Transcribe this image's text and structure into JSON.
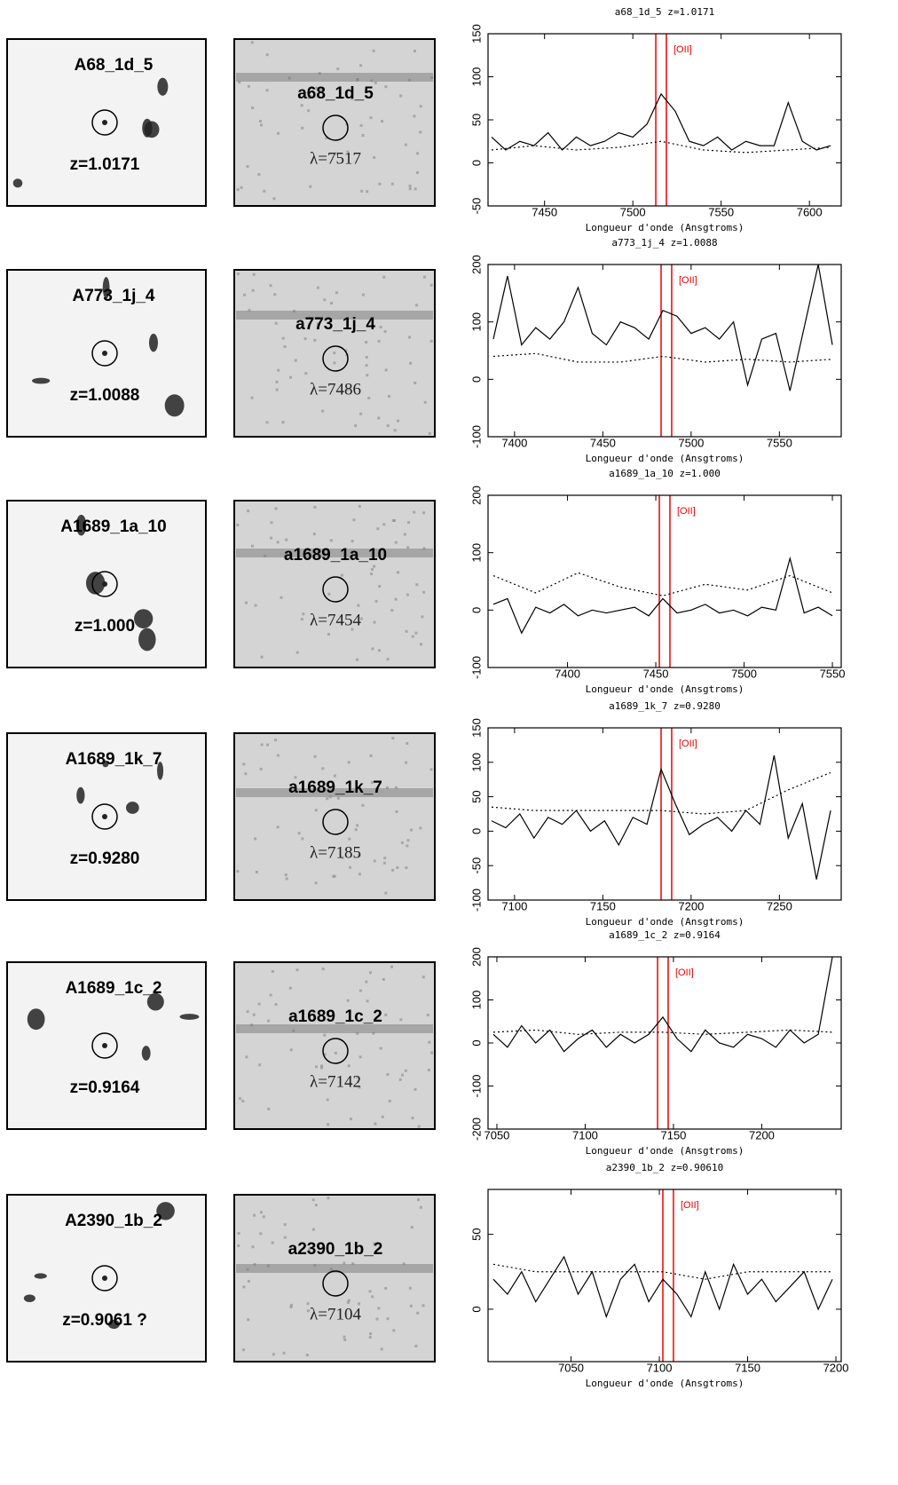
{
  "rows": [
    {
      "image": {
        "name": "A68_1d_5",
        "z": "z=1.0171"
      },
      "slit": {
        "name": "a68_1d_5",
        "lambda": "λ=7517"
      }
    },
    {
      "image": {
        "name": "A773_1j_4",
        "z": "z=1.0088"
      },
      "slit": {
        "name": "a773_1j_4",
        "lambda": "λ=7486"
      }
    },
    {
      "image": {
        "name": "A1689_1a_10",
        "z": "z=1.000"
      },
      "slit": {
        "name": "a1689_1a_10",
        "lambda": "λ=7454"
      }
    },
    {
      "image": {
        "name": "A1689_1k_7",
        "z": "z=0.9280"
      },
      "slit": {
        "name": "a1689_1k_7",
        "lambda": "λ=7185"
      }
    },
    {
      "image": {
        "name": "A1689_1c_2",
        "z": "z=0.9164"
      },
      "slit": {
        "name": "a1689_1c_2",
        "lambda": "λ=7142"
      }
    },
    {
      "image": {
        "name": "A2390_1b_2",
        "z": "z=0.9061 ?"
      },
      "slit": {
        "name": "a2390_1b_2",
        "lambda": "λ=7104"
      }
    }
  ],
  "chart_data": [
    {
      "type": "line",
      "title": "a68_1d_5 z=1.0171",
      "x_label": "Longueur d'onde (Ansgtroms)",
      "annotation": "[OII]",
      "oii_lines": [
        7513,
        7519
      ],
      "xlim": [
        7418,
        7618
      ],
      "xticks": [
        7450,
        7500,
        7550,
        7600
      ],
      "ylim": [
        -50,
        150
      ],
      "yticks": [
        -50,
        0,
        50,
        100,
        150
      ],
      "series": [
        {
          "color": "#000000",
          "style": "solid",
          "x": [
            7420,
            7428,
            7436,
            7444,
            7452,
            7460,
            7468,
            7476,
            7484,
            7492,
            7500,
            7508,
            7516,
            7524,
            7532,
            7540,
            7548,
            7556,
            7564,
            7572,
            7580,
            7588,
            7596,
            7604,
            7612
          ],
          "values": [
            30,
            15,
            25,
            20,
            35,
            15,
            30,
            20,
            25,
            35,
            30,
            45,
            80,
            60,
            25,
            20,
            30,
            15,
            25,
            20,
            20,
            70,
            25,
            15,
            20
          ]
        },
        {
          "color": "#000000",
          "style": "dotted",
          "x": [
            7420,
            7444,
            7468,
            7492,
            7516,
            7540,
            7564,
            7588,
            7612
          ],
          "values": [
            15,
            20,
            15,
            18,
            25,
            15,
            12,
            15,
            18
          ]
        }
      ]
    },
    {
      "type": "line",
      "title": "a773_1j_4 z=1.0088",
      "x_label": "Longueur d'onde (Ansgtroms)",
      "annotation": "[OII]",
      "oii_lines": [
        7483,
        7489
      ],
      "xlim": [
        7385,
        7585
      ],
      "xticks": [
        7400,
        7450,
        7500,
        7550
      ],
      "ylim": [
        -100,
        200
      ],
      "yticks": [
        -100,
        0,
        100,
        200
      ],
      "series": [
        {
          "color": "#000000",
          "style": "solid",
          "x": [
            7388,
            7396,
            7404,
            7412,
            7420,
            7428,
            7436,
            7444,
            7452,
            7460,
            7468,
            7476,
            7484,
            7492,
            7500,
            7508,
            7516,
            7524,
            7532,
            7540,
            7548,
            7556,
            7564,
            7572,
            7580
          ],
          "values": [
            70,
            180,
            60,
            90,
            70,
            100,
            160,
            80,
            60,
            100,
            90,
            70,
            120,
            110,
            80,
            90,
            70,
            100,
            -10,
            70,
            80,
            -20,
            90,
            200,
            60
          ]
        },
        {
          "color": "#000000",
          "style": "dotted",
          "x": [
            7388,
            7412,
            7436,
            7460,
            7484,
            7508,
            7532,
            7556,
            7580
          ],
          "values": [
            40,
            45,
            30,
            30,
            40,
            30,
            35,
            30,
            35
          ]
        }
      ]
    },
    {
      "type": "line",
      "title": "a1689_1a_10 z=1.000",
      "x_label": "Longueur d'onde (Ansgtroms)",
      "annotation": "[OII]",
      "oii_lines": [
        7452,
        7458
      ],
      "xlim": [
        7355,
        7555
      ],
      "xticks": [
        7400,
        7450,
        7500,
        7550
      ],
      "ylim": [
        -100,
        200
      ],
      "yticks": [
        -100,
        0,
        100,
        200
      ],
      "series": [
        {
          "color": "#000000",
          "style": "solid",
          "x": [
            7358,
            7366,
            7374,
            7382,
            7390,
            7398,
            7406,
            7414,
            7422,
            7430,
            7438,
            7446,
            7454,
            7462,
            7470,
            7478,
            7486,
            7494,
            7502,
            7510,
            7518,
            7526,
            7534,
            7542,
            7550
          ],
          "values": [
            10,
            20,
            -40,
            5,
            -5,
            10,
            -10,
            0,
            -5,
            0,
            5,
            -10,
            20,
            -5,
            0,
            10,
            -5,
            0,
            -10,
            5,
            0,
            90,
            -5,
            5,
            -10
          ]
        },
        {
          "color": "#000000",
          "style": "dotted",
          "x": [
            7358,
            7382,
            7406,
            7430,
            7454,
            7478,
            7502,
            7526,
            7550
          ],
          "values": [
            60,
            30,
            65,
            40,
            25,
            45,
            35,
            60,
            30
          ]
        }
      ]
    },
    {
      "type": "line",
      "title": "a1689_1k_7 z=0.9280",
      "x_label": "Longueur d'onde (Ansgtroms)",
      "annotation": "[OII]",
      "oii_lines": [
        7183,
        7189
      ],
      "xlim": [
        7085,
        7285
      ],
      "xticks": [
        7100,
        7150,
        7200,
        7250
      ],
      "ylim": [
        -100,
        150
      ],
      "yticks": [
        -100,
        -50,
        0,
        50,
        100,
        150
      ],
      "series": [
        {
          "color": "#000000",
          "style": "solid",
          "x": [
            7087,
            7095,
            7103,
            7111,
            7119,
            7127,
            7135,
            7143,
            7151,
            7159,
            7167,
            7175,
            7183,
            7191,
            7199,
            7207,
            7215,
            7223,
            7231,
            7239,
            7247,
            7255,
            7263,
            7271,
            7279
          ],
          "values": [
            15,
            5,
            25,
            -10,
            20,
            10,
            30,
            0,
            15,
            -20,
            20,
            10,
            90,
            40,
            -5,
            10,
            20,
            0,
            30,
            10,
            110,
            -10,
            40,
            -70,
            30
          ]
        },
        {
          "color": "#000000",
          "style": "dotted",
          "x": [
            7087,
            7111,
            7135,
            7159,
            7183,
            7207,
            7231,
            7255,
            7279
          ],
          "values": [
            35,
            30,
            30,
            30,
            30,
            25,
            30,
            60,
            85
          ]
        }
      ]
    },
    {
      "type": "line",
      "title": "a1689_1c_2 z=0.9164",
      "x_label": "Longueur d'onde (Ansgtroms)",
      "annotation": "[OII]",
      "oii_lines": [
        7141,
        7147
      ],
      "xlim": [
        7045,
        7245
      ],
      "xticks": [
        7050,
        7100,
        7150,
        7200
      ],
      "ylim": [
        -200,
        200
      ],
      "yticks": [
        -200,
        -100,
        0,
        100,
        200
      ],
      "series": [
        {
          "color": "#000000",
          "style": "solid",
          "x": [
            7048,
            7056,
            7064,
            7072,
            7080,
            7088,
            7096,
            7104,
            7112,
            7120,
            7128,
            7136,
            7144,
            7152,
            7160,
            7168,
            7176,
            7184,
            7192,
            7200,
            7208,
            7216,
            7224,
            7232,
            7240
          ],
          "values": [
            20,
            -10,
            40,
            0,
            30,
            -20,
            10,
            30,
            -10,
            20,
            0,
            20,
            60,
            10,
            -20,
            30,
            0,
            -10,
            20,
            10,
            -10,
            30,
            0,
            20,
            200
          ]
        },
        {
          "color": "#000000",
          "style": "dotted",
          "x": [
            7048,
            7072,
            7096,
            7120,
            7144,
            7168,
            7192,
            7216,
            7240
          ],
          "values": [
            25,
            30,
            20,
            25,
            25,
            20,
            25,
            30,
            25
          ]
        }
      ]
    },
    {
      "type": "line",
      "title": "a2390_1b_2 z=0.90610",
      "x_label": "Longueur d'onde (Ansgtroms)",
      "annotation": "[OII]",
      "oii_lines": [
        7102,
        7108
      ],
      "xlim": [
        7003,
        7203
      ],
      "xticks": [
        7050,
        7100,
        7150,
        7200
      ],
      "ylim": [
        -35,
        80
      ],
      "yticks": [
        0,
        50
      ],
      "series": [
        {
          "color": "#000000",
          "style": "solid",
          "x": [
            7006,
            7014,
            7022,
            7030,
            7038,
            7046,
            7054,
            7062,
            7070,
            7078,
            7086,
            7094,
            7102,
            7110,
            7118,
            7126,
            7134,
            7142,
            7150,
            7158,
            7166,
            7174,
            7182,
            7190,
            7198
          ],
          "values": [
            20,
            10,
            25,
            5,
            20,
            35,
            10,
            25,
            -5,
            20,
            30,
            5,
            20,
            10,
            -5,
            25,
            0,
            30,
            10,
            20,
            5,
            15,
            25,
            0,
            20
          ]
        },
        {
          "color": "#000000",
          "style": "dotted",
          "x": [
            7006,
            7030,
            7054,
            7078,
            7102,
            7126,
            7150,
            7174,
            7198
          ],
          "values": [
            30,
            25,
            25,
            25,
            25,
            20,
            25,
            25,
            25
          ]
        }
      ]
    }
  ]
}
